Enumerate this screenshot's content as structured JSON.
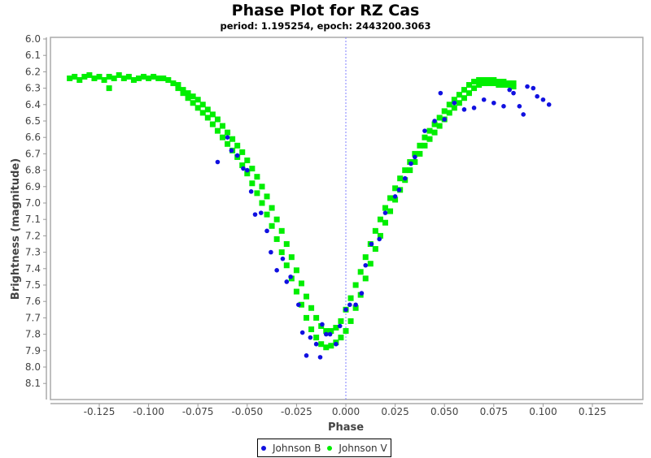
{
  "chart_data": {
    "type": "scatter",
    "title": "Phase Plot for RZ Cas",
    "subtitle": "period: 1.195254, epoch: 2443200.3063",
    "xlabel": "Phase",
    "ylabel": "Brightness (magnitude)",
    "xlim": [
      -0.15,
      0.15
    ],
    "ylim": [
      8.2,
      6.0
    ],
    "y_inverted": true,
    "grid": false,
    "legend": "bottom",
    "x_ticks": [
      "-0.125",
      "-0.100",
      "-0.075",
      "-0.050",
      "-0.025",
      "0.000",
      "0.025",
      "0.050",
      "0.075",
      "0.100",
      "0.125"
    ],
    "y_ticks": [
      "6.0",
      "6.1",
      "6.2",
      "6.3",
      "6.4",
      "6.5",
      "6.6",
      "6.7",
      "6.8",
      "6.9",
      "7.0",
      "7.1",
      "7.2",
      "7.3",
      "7.4",
      "7.5",
      "7.6",
      "7.7",
      "7.8",
      "7.9",
      "8.0",
      "8.1"
    ],
    "reference_line_x": 0.0,
    "series": [
      {
        "name": "Johnson B",
        "color": "#1010e0",
        "marker": "circle",
        "points": [
          [
            -0.065,
            6.75
          ],
          [
            -0.06,
            6.6
          ],
          [
            -0.058,
            6.68
          ],
          [
            -0.055,
            6.71
          ],
          [
            -0.052,
            6.79
          ],
          [
            -0.05,
            6.8
          ],
          [
            -0.048,
            6.93
          ],
          [
            -0.046,
            7.07
          ],
          [
            -0.043,
            7.06
          ],
          [
            -0.04,
            7.17
          ],
          [
            -0.038,
            7.3
          ],
          [
            -0.035,
            7.41
          ],
          [
            -0.032,
            7.34
          ],
          [
            -0.03,
            7.48
          ],
          [
            -0.028,
            7.45
          ],
          [
            -0.024,
            7.62
          ],
          [
            -0.022,
            7.79
          ],
          [
            -0.02,
            7.93
          ],
          [
            -0.018,
            7.82
          ],
          [
            -0.015,
            7.86
          ],
          [
            -0.013,
            7.94
          ],
          [
            -0.012,
            7.74
          ],
          [
            -0.01,
            7.8
          ],
          [
            -0.008,
            7.8
          ],
          [
            -0.005,
            7.86
          ],
          [
            -0.003,
            7.75
          ],
          [
            0,
            7.65
          ],
          [
            0.002,
            7.62
          ],
          [
            0.005,
            7.62
          ],
          [
            0.008,
            7.55
          ],
          [
            0.01,
            7.38
          ],
          [
            0.013,
            7.25
          ],
          [
            0.017,
            7.22
          ],
          [
            0.02,
            7.06
          ],
          [
            0.025,
            6.96
          ],
          [
            0.027,
            6.92
          ],
          [
            0.03,
            6.85
          ],
          [
            0.033,
            6.76
          ],
          [
            0.035,
            6.72
          ],
          [
            0.04,
            6.56
          ],
          [
            0.045,
            6.5
          ],
          [
            0.048,
            6.33
          ],
          [
            0.05,
            6.49
          ],
          [
            0.055,
            6.39
          ],
          [
            0.06,
            6.43
          ],
          [
            0.065,
            6.42
          ],
          [
            0.07,
            6.37
          ],
          [
            0.075,
            6.39
          ],
          [
            0.08,
            6.41
          ],
          [
            0.083,
            6.31
          ],
          [
            0.085,
            6.33
          ],
          [
            0.088,
            6.41
          ],
          [
            0.09,
            6.46
          ],
          [
            0.092,
            6.29
          ],
          [
            0.095,
            6.3
          ],
          [
            0.097,
            6.35
          ],
          [
            0.1,
            6.37
          ],
          [
            0.103,
            6.4
          ]
        ]
      },
      {
        "name": "Johnson V",
        "color": "#00ee00",
        "marker": "square",
        "points": [
          [
            -0.14,
            6.24
          ],
          [
            -0.1375,
            6.23
          ],
          [
            -0.135,
            6.25
          ],
          [
            -0.1325,
            6.23
          ],
          [
            -0.13,
            6.22
          ],
          [
            -0.1275,
            6.24
          ],
          [
            -0.125,
            6.23
          ],
          [
            -0.1225,
            6.25
          ],
          [
            -0.12,
            6.3
          ],
          [
            -0.12,
            6.23
          ],
          [
            -0.1175,
            6.24
          ],
          [
            -0.115,
            6.22
          ],
          [
            -0.1125,
            6.24
          ],
          [
            -0.11,
            6.23
          ],
          [
            -0.1075,
            6.25
          ],
          [
            -0.105,
            6.24
          ],
          [
            -0.1025,
            6.23
          ],
          [
            -0.1,
            6.24
          ],
          [
            -0.0975,
            6.23
          ],
          [
            -0.095,
            6.24
          ],
          [
            -0.0925,
            6.24
          ],
          [
            -0.09,
            6.25
          ],
          [
            -0.0875,
            6.27
          ],
          [
            -0.085,
            6.28
          ],
          [
            -0.085,
            6.3
          ],
          [
            -0.0825,
            6.31
          ],
          [
            -0.0825,
            6.33
          ],
          [
            -0.08,
            6.33
          ],
          [
            -0.08,
            6.36
          ],
          [
            -0.0775,
            6.35
          ],
          [
            -0.0775,
            6.39
          ],
          [
            -0.075,
            6.37
          ],
          [
            -0.075,
            6.42
          ],
          [
            -0.0725,
            6.4
          ],
          [
            -0.0725,
            6.45
          ],
          [
            -0.07,
            6.43
          ],
          [
            -0.07,
            6.48
          ],
          [
            -0.0675,
            6.46
          ],
          [
            -0.0675,
            6.52
          ],
          [
            -0.065,
            6.49
          ],
          [
            -0.065,
            6.56
          ],
          [
            -0.0625,
            6.53
          ],
          [
            -0.0625,
            6.6
          ],
          [
            -0.06,
            6.57
          ],
          [
            -0.06,
            6.64
          ],
          [
            -0.0575,
            6.61
          ],
          [
            -0.0575,
            6.68
          ],
          [
            -0.055,
            6.65
          ],
          [
            -0.055,
            6.72
          ],
          [
            -0.0525,
            6.69
          ],
          [
            -0.0525,
            6.77
          ],
          [
            -0.05,
            6.74
          ],
          [
            -0.05,
            6.82
          ],
          [
            -0.0475,
            6.79
          ],
          [
            -0.0475,
            6.88
          ],
          [
            -0.045,
            6.84
          ],
          [
            -0.045,
            6.94
          ],
          [
            -0.0425,
            6.9
          ],
          [
            -0.0425,
            7.0
          ],
          [
            -0.04,
            6.96
          ],
          [
            -0.04,
            7.07
          ],
          [
            -0.0375,
            7.03
          ],
          [
            -0.0375,
            7.14
          ],
          [
            -0.035,
            7.1
          ],
          [
            -0.035,
            7.22
          ],
          [
            -0.0325,
            7.17
          ],
          [
            -0.0325,
            7.3
          ],
          [
            -0.03,
            7.25
          ],
          [
            -0.03,
            7.38
          ],
          [
            -0.0275,
            7.33
          ],
          [
            -0.0275,
            7.46
          ],
          [
            -0.025,
            7.41
          ],
          [
            -0.025,
            7.54
          ],
          [
            -0.0225,
            7.49
          ],
          [
            -0.0225,
            7.62
          ],
          [
            -0.02,
            7.57
          ],
          [
            -0.02,
            7.7
          ],
          [
            -0.0175,
            7.64
          ],
          [
            -0.0175,
            7.77
          ],
          [
            -0.015,
            7.7
          ],
          [
            -0.015,
            7.82
          ],
          [
            -0.0125,
            7.75
          ],
          [
            -0.0125,
            7.86
          ],
          [
            -0.01,
            7.78
          ],
          [
            -0.01,
            7.88
          ],
          [
            -0.0075,
            7.78
          ],
          [
            -0.0075,
            7.87
          ],
          [
            -0.005,
            7.76
          ],
          [
            -0.005,
            7.85
          ],
          [
            -0.0025,
            7.72
          ],
          [
            -0.0025,
            7.82
          ],
          [
            0,
            7.65
          ],
          [
            0,
            7.78
          ],
          [
            0.0025,
            7.58
          ],
          [
            0.0025,
            7.72
          ],
          [
            0.005,
            7.5
          ],
          [
            0.005,
            7.64
          ],
          [
            0.0075,
            7.42
          ],
          [
            0.0075,
            7.56
          ],
          [
            0.01,
            7.33
          ],
          [
            0.01,
            7.46
          ],
          [
            0.0125,
            7.25
          ],
          [
            0.0125,
            7.37
          ],
          [
            0.015,
            7.17
          ],
          [
            0.015,
            7.28
          ],
          [
            0.0175,
            7.1
          ],
          [
            0.0175,
            7.2
          ],
          [
            0.02,
            7.03
          ],
          [
            0.02,
            7.12
          ],
          [
            0.0225,
            6.97
          ],
          [
            0.0225,
            7.05
          ],
          [
            0.025,
            6.91
          ],
          [
            0.025,
            6.98
          ],
          [
            0.0275,
            6.85
          ],
          [
            0.0275,
            6.92
          ],
          [
            0.03,
            6.8
          ],
          [
            0.03,
            6.86
          ],
          [
            0.0325,
            6.75
          ],
          [
            0.0325,
            6.8
          ],
          [
            0.035,
            6.7
          ],
          [
            0.035,
            6.75
          ],
          [
            0.0375,
            6.65
          ],
          [
            0.0375,
            6.7
          ],
          [
            0.04,
            6.6
          ],
          [
            0.04,
            6.65
          ],
          [
            0.0425,
            6.56
          ],
          [
            0.0425,
            6.61
          ],
          [
            0.045,
            6.52
          ],
          [
            0.045,
            6.57
          ],
          [
            0.0475,
            6.48
          ],
          [
            0.0475,
            6.53
          ],
          [
            0.05,
            6.44
          ],
          [
            0.05,
            6.49
          ],
          [
            0.0525,
            6.4
          ],
          [
            0.0525,
            6.45
          ],
          [
            0.055,
            6.37
          ],
          [
            0.055,
            6.42
          ],
          [
            0.0575,
            6.34
          ],
          [
            0.0575,
            6.39
          ],
          [
            0.06,
            6.31
          ],
          [
            0.06,
            6.36
          ],
          [
            0.0625,
            6.28
          ],
          [
            0.0625,
            6.33
          ],
          [
            0.065,
            6.26
          ],
          [
            0.065,
            6.3
          ],
          [
            0.0675,
            6.25
          ],
          [
            0.0675,
            6.28
          ],
          [
            0.07,
            6.25
          ],
          [
            0.07,
            6.27
          ],
          [
            0.0725,
            6.25
          ],
          [
            0.0725,
            6.27
          ],
          [
            0.075,
            6.25
          ],
          [
            0.075,
            6.27
          ],
          [
            0.0775,
            6.26
          ],
          [
            0.0775,
            6.28
          ],
          [
            0.08,
            6.26
          ],
          [
            0.08,
            6.28
          ],
          [
            0.0825,
            6.27
          ],
          [
            0.0825,
            6.28
          ],
          [
            0.085,
            6.27
          ],
          [
            0.085,
            6.29
          ]
        ]
      }
    ]
  }
}
